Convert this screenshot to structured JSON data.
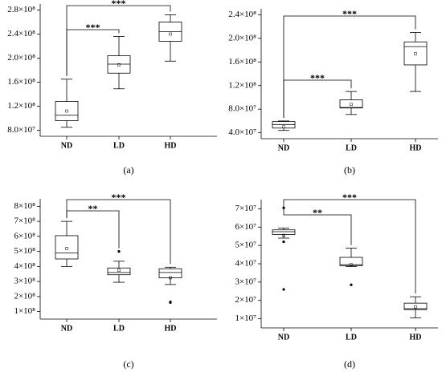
{
  "chart_data": [
    {
      "type": "box",
      "caption": "(a)",
      "categories": [
        "ND",
        "LD",
        "HD"
      ],
      "min": [
        85000000,
        149000000,
        195000000
      ],
      "q1": [
        96000000,
        175000000,
        228000000
      ],
      "median": [
        105000000,
        190000000,
        244000000
      ],
      "q3": [
        128000000,
        204000000,
        260000000
      ],
      "max": [
        165000000,
        236000000,
        272000000
      ],
      "mean": [
        112000000,
        189000000,
        240000000
      ],
      "outliers": [
        [],
        [],
        []
      ],
      "ylim": [
        70000000,
        290000000
      ],
      "yticks": [
        {
          "value": 80000000,
          "label": "8.0×10⁷"
        },
        {
          "value": 120000000,
          "label": "1.2×10⁸"
        },
        {
          "value": 160000000,
          "label": "1.6×10⁸"
        },
        {
          "value": 200000000,
          "label": "2.0×10⁸"
        },
        {
          "value": 240000000,
          "label": "2.4×10⁸"
        },
        {
          "value": 280000000,
          "label": "2.8×10⁸"
        }
      ],
      "brackets": [
        {
          "from": 0,
          "to": 1,
          "label": "***"
        },
        {
          "from": 0,
          "to": 2,
          "label": "***"
        }
      ]
    },
    {
      "type": "box",
      "caption": "(b)",
      "categories": [
        "ND",
        "LD",
        "HD"
      ],
      "min": [
        44000000,
        71000000,
        110000000
      ],
      "q1": [
        48000000,
        82000000,
        155000000
      ],
      "median": [
        54000000,
        83000000,
        186000000
      ],
      "q3": [
        59000000,
        96000000,
        194000000
      ],
      "max": [
        60000000,
        110000000,
        210000000
      ],
      "mean": [
        50000000,
        88000000,
        174000000
      ],
      "outliers": [
        [],
        [],
        []
      ],
      "ylim": [
        30000000,
        250000000
      ],
      "yticks": [
        {
          "value": 40000000,
          "label": "4.0×10⁷"
        },
        {
          "value": 80000000,
          "label": "8.0×10⁷"
        },
        {
          "value": 120000000,
          "label": "1.2×10⁸"
        },
        {
          "value": 160000000,
          "label": "1.6×10⁸"
        },
        {
          "value": 200000000,
          "label": "2.0×10⁸"
        },
        {
          "value": 240000000,
          "label": "2.4×10⁸"
        }
      ],
      "brackets": [
        {
          "from": 0,
          "to": 1,
          "label": "***"
        },
        {
          "from": 0,
          "to": 2,
          "label": "***"
        }
      ]
    },
    {
      "type": "box",
      "caption": "(c)",
      "categories": [
        "ND",
        "LD",
        "HD"
      ],
      "min": [
        400000000,
        295000000,
        280000000
      ],
      "q1": [
        450000000,
        345000000,
        325000000
      ],
      "median": [
        490000000,
        360000000,
        360000000
      ],
      "q3": [
        605000000,
        390000000,
        385000000
      ],
      "max": [
        700000000,
        435000000,
        395000000
      ],
      "mean": [
        520000000,
        375000000,
        325000000
      ],
      "outliers": [
        [],
        [
          500000000
        ],
        [
          160000000,
          165000000
        ]
      ],
      "ylim": [
        50000000,
        850000000
      ],
      "yticks": [
        {
          "value": 100000000,
          "label": "1×10⁸"
        },
        {
          "value": 200000000,
          "label": "2×10⁸"
        },
        {
          "value": 300000000,
          "label": "3×10⁸"
        },
        {
          "value": 400000000,
          "label": "4×10⁸"
        },
        {
          "value": 500000000,
          "label": "5×10⁸"
        },
        {
          "value": 600000000,
          "label": "6×10⁸"
        },
        {
          "value": 700000000,
          "label": "7×10⁸"
        },
        {
          "value": 800000000,
          "label": "8×10⁸"
        }
      ],
      "brackets": [
        {
          "from": 0,
          "to": 1,
          "label": "**"
        },
        {
          "from": 0,
          "to": 2,
          "label": "***"
        }
      ]
    },
    {
      "type": "box",
      "caption": "(d)",
      "categories": [
        "ND",
        "LD",
        "HD"
      ],
      "min": [
        54000000,
        38500000,
        10500000
      ],
      "q1": [
        56000000,
        39000000,
        15000000
      ],
      "median": [
        57500000,
        39500000,
        15500000
      ],
      "q3": [
        58500000,
        43500000,
        18500000
      ],
      "max": [
        59500000,
        48500000,
        22000000
      ],
      "mean": [
        55500000,
        39500000,
        16500000
      ],
      "outliers": [
        [
          70500000,
          52000000,
          26000000
        ],
        [
          28500000
        ],
        []
      ],
      "ylim": [
        5000000,
        75000000
      ],
      "yticks": [
        {
          "value": 10000000,
          "label": "1×10⁷"
        },
        {
          "value": 20000000,
          "label": "2×10⁷"
        },
        {
          "value": 30000000,
          "label": "3×10⁷"
        },
        {
          "value": 40000000,
          "label": "4×10⁷"
        },
        {
          "value": 50000000,
          "label": "5×10⁷"
        },
        {
          "value": 60000000,
          "label": "6×10⁷"
        },
        {
          "value": 70000000,
          "label": "7×10⁷"
        }
      ],
      "brackets": [
        {
          "from": 0,
          "to": 1,
          "label": "**"
        },
        {
          "from": 0,
          "to": 2,
          "label": "***"
        }
      ]
    }
  ]
}
